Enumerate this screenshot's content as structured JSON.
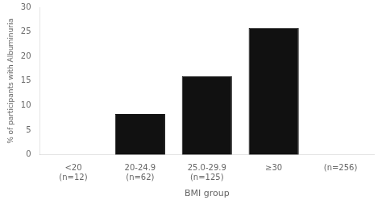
{
  "chart_data": {
    "type": "bar",
    "categories": [
      "<20\n(n=12)",
      "20-24.9\n(n=62)",
      "25.0-29.9\n(n=125)",
      "≥30",
      "(n=256)"
    ],
    "values": [
      0,
      8.3,
      16.0,
      25.8,
      null
    ],
    "color": "#111111",
    "xlabel": "BMI group",
    "ylabel": "% of participants with Albuminuria",
    "ylim": [
      0,
      30
    ],
    "yticks": [
      0,
      5,
      10,
      15,
      20,
      25,
      30
    ],
    "grid": false
  }
}
